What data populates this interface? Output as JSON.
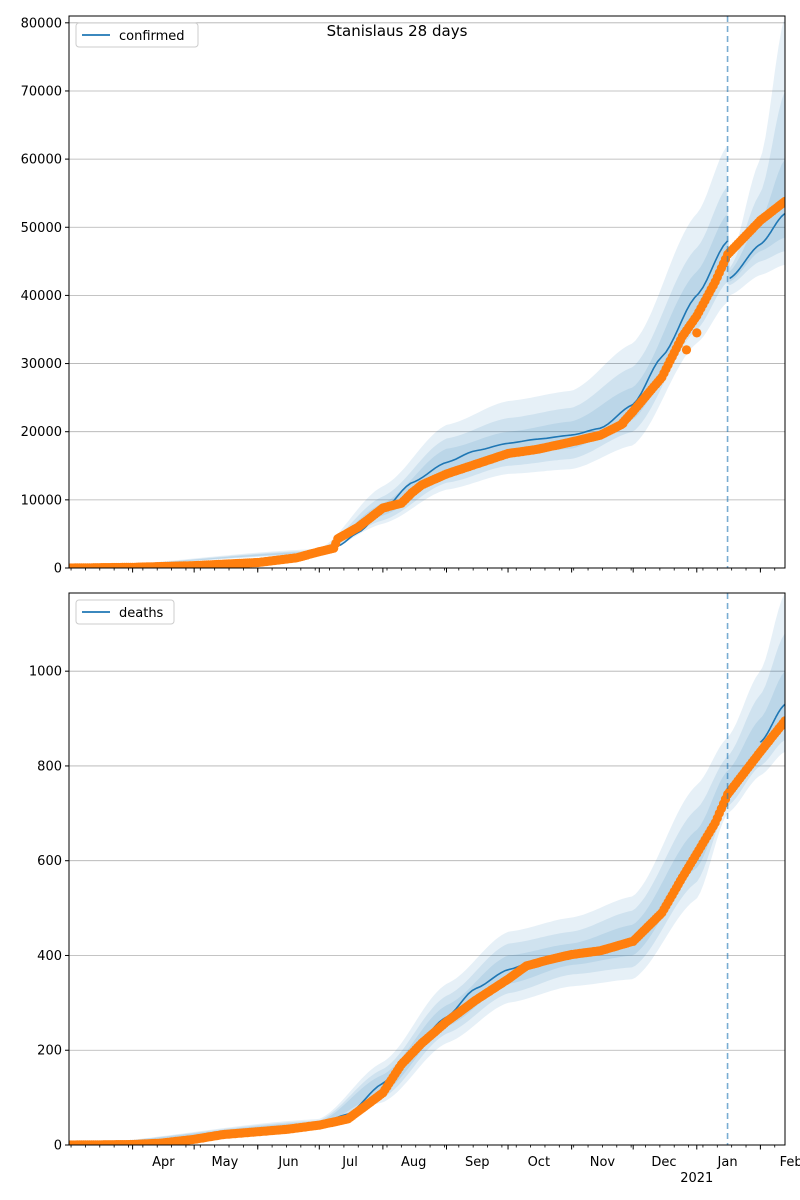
{
  "figure_title": "Stanislaus 28 days",
  "colors": {
    "model": "#1f77b4",
    "observed": "#ff7f0e",
    "band": "#1f77b4",
    "grid": "#b0b0b0",
    "forecast_line": "#1f77b4"
  },
  "x_axis": {
    "start": "2020-03-01",
    "end": "2021-02-13",
    "tick_labels": [
      {
        "date": "2020-04-01",
        "label": "Apr"
      },
      {
        "date": "2020-05-01",
        "label": "May"
      },
      {
        "date": "2020-06-01",
        "label": "Jun"
      },
      {
        "date": "2020-07-01",
        "label": "Jul"
      },
      {
        "date": "2020-08-01",
        "label": "Aug"
      },
      {
        "date": "2020-09-01",
        "label": "Sep"
      },
      {
        "date": "2020-10-01",
        "label": "Oct"
      },
      {
        "date": "2020-11-01",
        "label": "Nov"
      },
      {
        "date": "2020-12-01",
        "label": "Dec"
      },
      {
        "date": "2021-01-01",
        "label": "Jan"
      },
      {
        "date": "2021-02-01",
        "label": "Feb"
      }
    ],
    "year_label": {
      "date": "2021-01-01",
      "label": "2021"
    }
  },
  "forecast_start": "2021-01-16",
  "chart_data": [
    {
      "type": "line",
      "legend": "confirmed",
      "legend_position": "top-left",
      "ylim": [
        0,
        81000
      ],
      "yticks": [
        0,
        10000,
        20000,
        30000,
        40000,
        50000,
        60000,
        70000,
        80000
      ],
      "grid": true,
      "model": [
        [
          "2020-03-01",
          0
        ],
        [
          "2020-06-01",
          800
        ],
        [
          "2020-07-01",
          2300
        ],
        [
          "2020-07-10",
          3200
        ],
        [
          "2020-07-20",
          5200
        ],
        [
          "2020-08-01",
          8500
        ],
        [
          "2020-08-15",
          12500
        ],
        [
          "2020-09-01",
          15500
        ],
        [
          "2020-09-15",
          17200
        ],
        [
          "2020-10-01",
          18300
        ],
        [
          "2020-10-15",
          18900
        ],
        [
          "2020-11-01",
          19500
        ],
        [
          "2020-11-15",
          20500
        ],
        [
          "2020-12-01",
          24000
        ],
        [
          "2020-12-15",
          31000
        ],
        [
          "2021-01-01",
          40000
        ],
        [
          "2021-01-16",
          48000
        ],
        [
          "2021-01-17",
          42500
        ],
        [
          "2021-02-01",
          47500
        ],
        [
          "2021-02-13",
          52000
        ]
      ],
      "bands": [
        {
          "dates": [
            "2020-03-01",
            "2020-07-01",
            "2020-08-01",
            "2020-09-01",
            "2020-10-01",
            "2020-11-01",
            "2020-12-01",
            "2021-01-01",
            "2021-01-16",
            "2021-01-17",
            "2021-02-01",
            "2021-02-13"
          ],
          "low": [
            0,
            2000,
            6500,
            11500,
            13800,
            14500,
            18000,
            33000,
            39000,
            40000,
            43000,
            44500
          ],
          "high": [
            0,
            2800,
            12000,
            21000,
            24500,
            26000,
            33000,
            52000,
            62000,
            45000,
            60000,
            81000
          ]
        },
        {
          "dates": [
            "2020-03-01",
            "2020-07-01",
            "2020-08-01",
            "2020-09-01",
            "2020-10-01",
            "2020-11-01",
            "2020-12-01",
            "2021-01-01",
            "2021-01-16",
            "2021-01-17",
            "2021-02-01",
            "2021-02-13"
          ],
          "low": [
            0,
            2100,
            7000,
            12500,
            15000,
            16000,
            20000,
            35000,
            42000,
            41500,
            45000,
            46500
          ],
          "high": [
            0,
            2600,
            10500,
            19000,
            22000,
            23500,
            29500,
            47000,
            56000,
            44000,
            55000,
            70000
          ]
        },
        {
          "dates": [
            "2020-03-01",
            "2020-07-01",
            "2020-08-01",
            "2020-09-01",
            "2020-10-01",
            "2020-11-01",
            "2020-12-01",
            "2021-01-01",
            "2021-01-16",
            "2021-01-17",
            "2021-02-01",
            "2021-02-13"
          ],
          "low": [
            0,
            2200,
            7700,
            13500,
            16500,
            17500,
            21800,
            37000,
            44500,
            42000,
            46500,
            48500
          ],
          "high": [
            0,
            2450,
            9500,
            17500,
            20000,
            21500,
            26500,
            43500,
            52000,
            43500,
            51000,
            60000
          ]
        }
      ],
      "observed": [
        [
          "2020-03-01",
          0
        ],
        [
          "2020-04-01",
          100
        ],
        [
          "2020-05-01",
          350
        ],
        [
          "2020-06-01",
          800
        ],
        [
          "2020-06-20",
          1500
        ],
        [
          "2020-07-01",
          2400
        ],
        [
          "2020-07-08",
          2900
        ],
        [
          "2020-07-10",
          4300
        ],
        [
          "2020-07-20",
          6000
        ],
        [
          "2020-08-01",
          8800
        ],
        [
          "2020-08-10",
          9500
        ],
        [
          "2020-08-15",
          11000
        ],
        [
          "2020-08-20",
          12200
        ],
        [
          "2020-09-01",
          13800
        ],
        [
          "2020-09-15",
          15200
        ],
        [
          "2020-10-01",
          16800
        ],
        [
          "2020-10-15",
          17400
        ],
        [
          "2020-11-01",
          18500
        ],
        [
          "2020-11-15",
          19500
        ],
        [
          "2020-11-25",
          21000
        ],
        [
          "2020-12-01",
          23000
        ],
        [
          "2020-12-15",
          28000
        ],
        [
          "2020-12-25",
          34000
        ],
        [
          "2021-01-01",
          37000
        ],
        [
          "2021-01-10",
          42000
        ],
        [
          "2021-01-16",
          46000
        ],
        [
          "2021-02-01",
          51000
        ],
        [
          "2021-02-13",
          53800
        ]
      ],
      "outliers": [
        [
          "2020-11-26",
          21200
        ],
        [
          "2020-12-27",
          32000
        ],
        [
          "2021-01-01",
          34500
        ]
      ]
    },
    {
      "type": "line",
      "legend": "deaths",
      "legend_position": "top-left",
      "ylim": [
        0,
        1165
      ],
      "yticks": [
        0,
        200,
        400,
        600,
        800,
        1000
      ],
      "grid": true,
      "model": [
        [
          "2020-03-01",
          0
        ],
        [
          "2020-04-01",
          2
        ],
        [
          "2020-05-01",
          12
        ],
        [
          "2020-06-01",
          28
        ],
        [
          "2020-07-01",
          45
        ],
        [
          "2020-07-15",
          65
        ],
        [
          "2020-08-01",
          130
        ],
        [
          "2020-08-15",
          200
        ],
        [
          "2020-09-01",
          270
        ],
        [
          "2020-09-15",
          330
        ],
        [
          "2020-10-01",
          370
        ],
        [
          "2020-10-15",
          390
        ],
        [
          "2020-11-01",
          402
        ],
        [
          "2020-11-15",
          412
        ],
        [
          "2020-12-01",
          430
        ],
        [
          "2020-12-15",
          490
        ],
        [
          "2021-01-01",
          620
        ],
        [
          "2021-01-16",
          740
        ],
        [
          "2021-02-01",
          850
        ],
        [
          "2021-02-13",
          930
        ]
      ],
      "bands": [
        {
          "dates": [
            "2020-03-01",
            "2020-07-01",
            "2020-08-01",
            "2020-09-01",
            "2020-10-01",
            "2020-11-01",
            "2020-12-01",
            "2021-01-01",
            "2021-01-16",
            "2021-02-01",
            "2021-02-13"
          ],
          "low": [
            0,
            38,
            90,
            215,
            300,
            335,
            350,
            520,
            700,
            780,
            830
          ],
          "high": [
            0,
            55,
            175,
            340,
            450,
            480,
            525,
            760,
            860,
            1000,
            1165
          ]
        },
        {
          "dates": [
            "2020-03-01",
            "2020-07-01",
            "2020-08-01",
            "2020-09-01",
            "2020-10-01",
            "2020-11-01",
            "2020-12-01",
            "2021-01-01",
            "2021-01-16",
            "2021-02-01",
            "2021-02-13"
          ],
          "low": [
            0,
            40,
            100,
            235,
            320,
            360,
            375,
            555,
            715,
            800,
            855
          ],
          "high": [
            0,
            52,
            160,
            315,
            425,
            450,
            495,
            710,
            820,
            950,
            1080
          ]
        },
        {
          "dates": [
            "2020-03-01",
            "2020-07-01",
            "2020-08-01",
            "2020-09-01",
            "2020-10-01",
            "2020-11-01",
            "2020-12-01",
            "2021-01-01",
            "2021-01-16",
            "2021-02-01",
            "2021-02-13"
          ],
          "low": [
            0,
            42,
            110,
            250,
            340,
            380,
            400,
            585,
            728,
            820,
            880
          ],
          "high": [
            0,
            49,
            148,
            295,
            400,
            425,
            465,
            665,
            790,
            900,
            1000
          ]
        }
      ],
      "observed": [
        [
          "2020-03-01",
          0
        ],
        [
          "2020-04-01",
          1
        ],
        [
          "2020-04-15",
          4
        ],
        [
          "2020-05-01",
          12
        ],
        [
          "2020-05-15",
          22
        ],
        [
          "2020-06-01",
          28
        ],
        [
          "2020-06-15",
          33
        ],
        [
          "2020-07-01",
          42
        ],
        [
          "2020-07-15",
          55
        ],
        [
          "2020-08-01",
          110
        ],
        [
          "2020-08-10",
          170
        ],
        [
          "2020-08-20",
          215
        ],
        [
          "2020-09-01",
          260
        ],
        [
          "2020-09-15",
          305
        ],
        [
          "2020-10-01",
          350
        ],
        [
          "2020-10-10",
          378
        ],
        [
          "2020-10-20",
          390
        ],
        [
          "2020-11-01",
          402
        ],
        [
          "2020-11-15",
          410
        ],
        [
          "2020-12-01",
          430
        ],
        [
          "2020-12-15",
          490
        ],
        [
          "2020-12-25",
          565
        ],
        [
          "2021-01-01",
          615
        ],
        [
          "2021-01-10",
          680
        ],
        [
          "2021-01-16",
          740
        ],
        [
          "2021-02-01",
          830
        ],
        [
          "2021-02-13",
          895
        ]
      ],
      "outliers": []
    }
  ]
}
